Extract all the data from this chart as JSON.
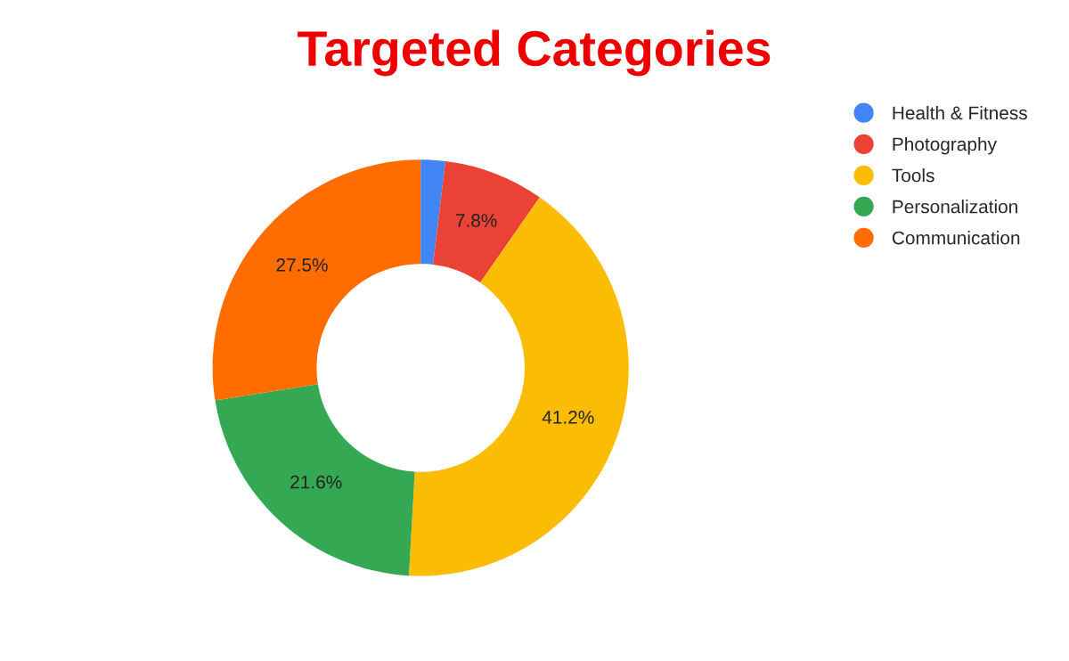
{
  "chart_data": {
    "type": "donut",
    "title": "Targeted Categories",
    "categories": [
      "Health & Fitness",
      "Photography",
      "Tools",
      "Personalization",
      "Communication"
    ],
    "values": [
      1.9,
      7.8,
      41.2,
      21.6,
      27.5
    ],
    "value_labels": [
      null,
      "7.8%",
      "41.2%",
      "21.6%",
      "27.5%"
    ],
    "colors": [
      "#4285f4",
      "#ea4335",
      "#fbbc04",
      "#34a853",
      "#ff6d01"
    ],
    "legend": "top right"
  }
}
